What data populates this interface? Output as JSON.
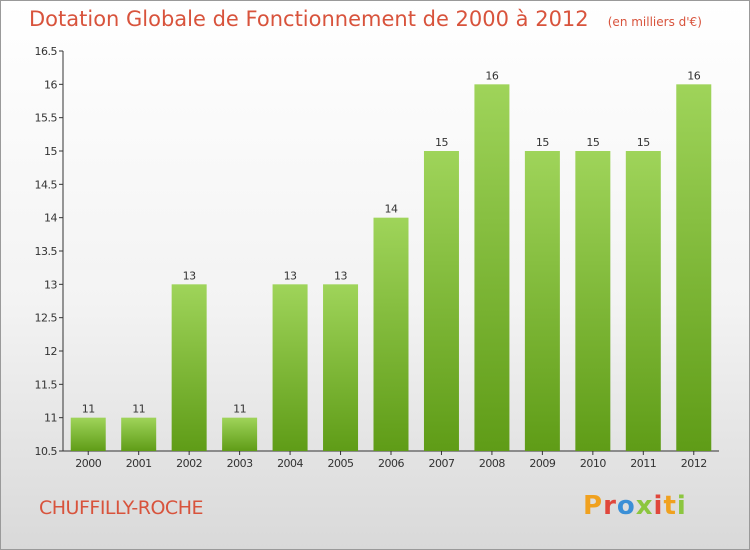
{
  "header": {
    "title": "Dotation Globale de Fonctionnement de 2000 à 2012",
    "subtitle": "(en milliers d'€)"
  },
  "footer": {
    "commune": "CHUFFILLY-ROCHE",
    "logo": "Proxiti"
  },
  "colors": {
    "title": "#d8533c",
    "bar_top": "#9fd45a",
    "bar_bottom": "#5f9c17",
    "axis": "#333333"
  },
  "chart_data": {
    "type": "bar",
    "title": "Dotation Globale de Fonctionnement de 2000 à 2012",
    "subtitle": "(en milliers d'€)",
    "xlabel": "",
    "ylabel": "",
    "categories": [
      "2000",
      "2001",
      "2002",
      "2003",
      "2004",
      "2005",
      "2006",
      "2007",
      "2008",
      "2009",
      "2010",
      "2011",
      "2012"
    ],
    "values": [
      11,
      11,
      13,
      11,
      13,
      13,
      14,
      15,
      16,
      15,
      15,
      15,
      16
    ],
    "data_labels": [
      "11",
      "11",
      "13",
      "11",
      "13",
      "13",
      "14",
      "15",
      "16",
      "15",
      "15",
      "15",
      "16"
    ],
    "ylim": [
      10.5,
      16.5
    ],
    "yticks": [
      "10.5",
      "11",
      "11.5",
      "12",
      "12.5",
      "13",
      "13.5",
      "14",
      "14.5",
      "15",
      "15.5",
      "16",
      "16.5"
    ],
    "ytick_values": [
      10.5,
      11,
      11.5,
      12,
      12.5,
      13,
      13.5,
      14,
      14.5,
      15,
      15.5,
      16,
      16.5
    ],
    "grid": false,
    "legend": "none"
  }
}
